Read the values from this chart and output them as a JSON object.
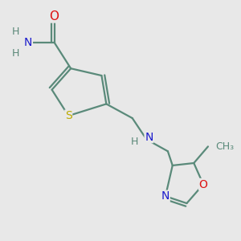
{
  "bg_color": "#e8e8e8",
  "bond_color": "#5a8a7a",
  "bond_width": 1.6,
  "atom_colors": {
    "C": "#5a8a7a",
    "N": "#1a1acc",
    "O": "#dd1111",
    "S": "#bbaa00",
    "H": "#5a8878"
  },
  "font_size": 9,
  "fig_size": [
    3.0,
    3.0
  ],
  "dpi": 100,
  "xlim": [
    0,
    10
  ],
  "ylim": [
    0,
    10
  ]
}
